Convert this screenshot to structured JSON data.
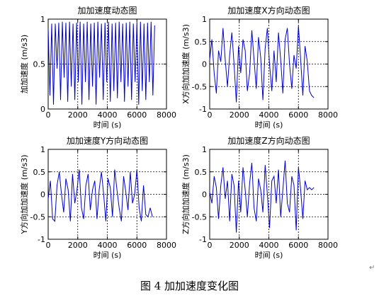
{
  "caption": "图 4 加加速度变化图",
  "paragraph_mark": "↵",
  "colors": {
    "line": "#0000cc",
    "axis": "#000000",
    "grid": "#000000"
  },
  "chart_data": [
    {
      "type": "line",
      "title": "加加速度动态图",
      "xlabel": "时间 (s)",
      "ylabel": "加加速度 (m/s3)",
      "xlim": [
        0,
        8000
      ],
      "ylim": [
        0,
        1
      ],
      "xticks": [
        "0",
        "2000",
        "4000",
        "6000",
        "8000"
      ],
      "yticks": [
        "0",
        "0.5",
        "1"
      ],
      "grid": true,
      "series": [
        {
          "x": [
            0,
            120,
            240,
            360,
            480,
            600,
            720,
            840,
            960,
            1080,
            1200,
            1320,
            1440,
            1560,
            1680,
            1800,
            1920,
            2040,
            2160,
            2280,
            2400,
            2520,
            2640,
            2760,
            2880,
            3000,
            3120,
            3240,
            3360,
            3480,
            3600,
            3720,
            3840,
            3960,
            4080,
            4200,
            4320,
            4440,
            4560,
            4680,
            4800,
            4920,
            5040,
            5160,
            5280,
            5400,
            5520,
            5640,
            5760,
            5880,
            6000,
            6120,
            6240,
            6360,
            6480,
            6600,
            6720,
            6840,
            6960,
            7080,
            7200
          ],
          "y": [
            0.9,
            0.15,
            0.95,
            0.05,
            0.95,
            0.45,
            0.96,
            0.1,
            0.97,
            0.35,
            0.96,
            0.08,
            0.97,
            0.25,
            0.95,
            0.1,
            0.96,
            0.3,
            0.97,
            0.05,
            0.95,
            0.3,
            0.97,
            0.1,
            0.95,
            0.25,
            0.96,
            0.05,
            0.97,
            0.35,
            0.95,
            0.1,
            0.96,
            0.3,
            0.97,
            0.08,
            0.95,
            0.2,
            0.96,
            0.12,
            0.97,
            0.3,
            0.95,
            0.08,
            0.96,
            0.25,
            0.97,
            0.1,
            0.95,
            0.3,
            0.96,
            0.05,
            0.97,
            0.2,
            0.95,
            0.1,
            0.96,
            0.3,
            0.97,
            0.15,
            0.93
          ]
        }
      ]
    },
    {
      "type": "line",
      "title": "加加速度X方向动态图",
      "xlabel": "时间 (s)",
      "ylabel": "X方向加加速度 (m/s3)",
      "xlim": [
        0,
        8000
      ],
      "ylim": [
        -1,
        1
      ],
      "xticks": [
        "0",
        "2000",
        "4000",
        "6000",
        "8000"
      ],
      "yticks": [
        "-1",
        "-0.5",
        "0",
        "0.5",
        "1"
      ],
      "grid": true,
      "series": [
        {
          "x": [
            0,
            150,
            300,
            450,
            600,
            750,
            900,
            1050,
            1200,
            1350,
            1500,
            1650,
            1800,
            1950,
            2100,
            2250,
            2400,
            2550,
            2700,
            2850,
            3000,
            3150,
            3300,
            3450,
            3600,
            3750,
            3900,
            4050,
            4200,
            4350,
            4500,
            4650,
            4800,
            4950,
            5100,
            5250,
            5400,
            5550,
            5700,
            5850,
            6000,
            6150,
            6300,
            6450,
            6600,
            6750,
            6900,
            7050
          ],
          "y": [
            0.1,
            0.55,
            -0.2,
            -0.65,
            0.3,
            0.05,
            0.8,
            0.1,
            -0.5,
            0.2,
            0.7,
            0.0,
            -0.85,
            0.4,
            -0.2,
            0.55,
            0.3,
            -0.6,
            -0.2,
            0.75,
            0.1,
            -0.55,
            0.6,
            0.15,
            -0.8,
            0.35,
            0.8,
            0.0,
            -0.6,
            0.3,
            -0.4,
            0.7,
            0.1,
            -0.65,
            0.55,
            0.8,
            0.0,
            -0.55,
            0.2,
            -0.1,
            0.85,
            0.1,
            -0.7,
            0.4,
            0.05,
            -0.6,
            -0.7,
            -0.75
          ]
        }
      ]
    },
    {
      "type": "line",
      "title": "加加速度Y方向动态图",
      "xlabel": "时间 (s)",
      "ylabel": "Y方向加加速度 (m/s3)",
      "xlim": [
        0,
        8000
      ],
      "ylim": [
        -1,
        1
      ],
      "xticks": [
        "0",
        "2000",
        "4000",
        "6000",
        "8000"
      ],
      "yticks": [
        "-1",
        "-0.5",
        "0",
        "0.5",
        "1"
      ],
      "grid": true,
      "series": [
        {
          "x": [
            0,
            150,
            300,
            450,
            600,
            750,
            900,
            1050,
            1200,
            1350,
            1500,
            1650,
            1800,
            1950,
            2100,
            2250,
            2400,
            2550,
            2700,
            2850,
            3000,
            3150,
            3300,
            3450,
            3600,
            3750,
            3900,
            4050,
            4200,
            4350,
            4500,
            4650,
            4800,
            4950,
            5100,
            5250,
            5400,
            5550,
            5700,
            5850,
            6000,
            6150,
            6300,
            6450,
            6600,
            6750,
            6900,
            7050
          ],
          "y": [
            -0.1,
            0.3,
            -0.55,
            -0.6,
            0.2,
            0.5,
            0.0,
            -0.4,
            0.35,
            0.1,
            -0.6,
            0.45,
            -0.2,
            0.1,
            0.55,
            -0.3,
            -0.55,
            0.2,
            0.45,
            -0.35,
            0.1,
            0.3,
            -0.55,
            0.1,
            0.5,
            0.0,
            -0.6,
            0.35,
            0.15,
            -0.5,
            0.55,
            0.1,
            -0.3,
            -0.6,
            0.4,
            0.05,
            -0.35,
            0.5,
            -0.2,
            0.0,
            0.55,
            -0.3,
            -0.6,
            0.2,
            -0.45,
            -0.5,
            -0.3,
            -0.5
          ]
        }
      ]
    },
    {
      "type": "line",
      "title": "加加速度Z方向动态图",
      "xlabel": "时间 (s)",
      "ylabel": "Z方向加加速度 (m/s3)",
      "xlim": [
        0,
        8000
      ],
      "ylim": [
        -1,
        1
      ],
      "xticks": [
        "0",
        "2000",
        "4000",
        "6000",
        "8000"
      ],
      "yticks": [
        "-1",
        "-0.5",
        "0",
        "0.5",
        "1"
      ],
      "grid": true,
      "series": [
        {
          "x": [
            0,
            150,
            300,
            450,
            600,
            750,
            900,
            1050,
            1200,
            1350,
            1500,
            1650,
            1800,
            1950,
            2100,
            2250,
            2400,
            2550,
            2700,
            2850,
            3000,
            3150,
            3300,
            3450,
            3600,
            3750,
            3900,
            4050,
            4200,
            4350,
            4500,
            4650,
            4800,
            4950,
            5100,
            5250,
            5400,
            5550,
            5700,
            5850,
            6000,
            6150,
            6300,
            6450,
            6600,
            6750,
            6900,
            7050
          ],
          "y": [
            0.05,
            -0.2,
            0.4,
            0.15,
            -0.55,
            0.2,
            0.6,
            -0.1,
            0.3,
            -0.6,
            0.45,
            0.2,
            -0.85,
            0.3,
            -0.4,
            0.6,
            0.1,
            -0.5,
            0.25,
            0.7,
            -0.3,
            -0.6,
            0.35,
            0.1,
            -0.4,
            0.65,
            0.0,
            -0.75,
            0.3,
            0.4,
            -0.2,
            0.55,
            -0.5,
            0.1,
            0.75,
            -0.2,
            -0.4,
            0.4,
            0.2,
            -0.8,
            0.6,
            0.1,
            -0.55,
            0.3,
            0.1,
            0.15,
            0.1,
            0.15
          ]
        }
      ]
    }
  ]
}
